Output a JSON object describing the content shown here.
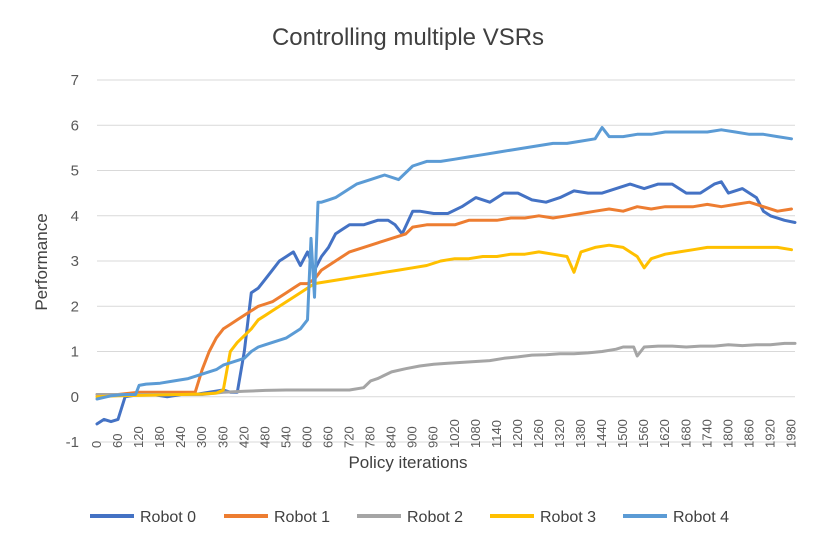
{
  "chart_data": {
    "type": "line",
    "title": "Controlling multiple VSRs",
    "xlabel": "Policy iterations",
    "ylabel": "Performance",
    "ylim": [
      -1,
      7
    ],
    "yticks": [
      "-1",
      "0",
      "1",
      "2",
      "3",
      "4",
      "5",
      "6",
      "7"
    ],
    "xlim": [
      0,
      1990
    ],
    "x_tick_labels": [
      "0",
      "60",
      "120",
      "180",
      "240",
      "300",
      "360",
      "420",
      "480",
      "540",
      "600",
      "660",
      "720",
      "780",
      "840",
      "900",
      "960",
      "1020",
      "1080",
      "1140",
      "1200",
      "1260",
      "1320",
      "1380",
      "1440",
      "1500",
      "1560",
      "1620",
      "1680",
      "1740",
      "1800",
      "1860",
      "1920",
      "1980"
    ],
    "grid": true,
    "legend_position": "bottom",
    "series": [
      {
        "name": "Robot 0",
        "color": "#4472c4",
        "x": [
          0,
          20,
          40,
          60,
          80,
          120,
          160,
          200,
          240,
          280,
          320,
          360,
          380,
          400,
          420,
          440,
          460,
          480,
          500,
          520,
          540,
          560,
          580,
          600,
          620,
          640,
          660,
          680,
          700,
          720,
          760,
          800,
          830,
          850,
          870,
          900,
          920,
          960,
          1000,
          1040,
          1080,
          1120,
          1160,
          1200,
          1240,
          1280,
          1320,
          1360,
          1400,
          1440,
          1480,
          1520,
          1560,
          1600,
          1640,
          1680,
          1720,
          1760,
          1780,
          1800,
          1840,
          1880,
          1900,
          1920,
          1960,
          1990
        ],
        "y": [
          -0.6,
          -0.5,
          -0.55,
          -0.5,
          0.0,
          0.05,
          0.05,
          0.0,
          0.05,
          0.05,
          0.1,
          0.15,
          0.1,
          0.1,
          1.0,
          2.3,
          2.4,
          2.6,
          2.8,
          3.0,
          3.1,
          3.2,
          2.9,
          3.2,
          2.8,
          3.1,
          3.3,
          3.6,
          3.7,
          3.8,
          3.8,
          3.9,
          3.9,
          3.8,
          3.6,
          4.1,
          4.1,
          4.05,
          4.05,
          4.2,
          4.4,
          4.3,
          4.5,
          4.5,
          4.35,
          4.3,
          4.4,
          4.55,
          4.5,
          4.5,
          4.6,
          4.7,
          4.6,
          4.7,
          4.7,
          4.5,
          4.5,
          4.7,
          4.75,
          4.5,
          4.6,
          4.4,
          4.1,
          4.0,
          3.9,
          3.85
        ]
      },
      {
        "name": "Robot 1",
        "color": "#ed7d31",
        "x": [
          0,
          60,
          120,
          180,
          240,
          280,
          300,
          320,
          340,
          360,
          380,
          400,
          420,
          440,
          460,
          480,
          500,
          520,
          540,
          560,
          580,
          600,
          620,
          640,
          680,
          720,
          760,
          800,
          840,
          880,
          900,
          940,
          980,
          1020,
          1060,
          1100,
          1140,
          1180,
          1220,
          1260,
          1300,
          1340,
          1380,
          1420,
          1460,
          1500,
          1540,
          1580,
          1620,
          1660,
          1700,
          1740,
          1780,
          1820,
          1860,
          1900,
          1940,
          1980
        ],
        "y": [
          0.05,
          0.05,
          0.1,
          0.1,
          0.1,
          0.1,
          0.6,
          1.0,
          1.3,
          1.5,
          1.6,
          1.7,
          1.8,
          1.9,
          2.0,
          2.05,
          2.1,
          2.2,
          2.3,
          2.4,
          2.5,
          2.5,
          2.6,
          2.8,
          3.0,
          3.2,
          3.3,
          3.4,
          3.5,
          3.6,
          3.75,
          3.8,
          3.8,
          3.8,
          3.9,
          3.9,
          3.9,
          3.95,
          3.95,
          4.0,
          3.95,
          4.0,
          4.05,
          4.1,
          4.15,
          4.1,
          4.2,
          4.15,
          4.2,
          4.2,
          4.2,
          4.25,
          4.2,
          4.25,
          4.3,
          4.2,
          4.1,
          4.15
        ]
      },
      {
        "name": "Robot 2",
        "color": "#a5a5a5",
        "x": [
          0,
          60,
          120,
          180,
          240,
          300,
          360,
          420,
          480,
          540,
          600,
          660,
          720,
          760,
          780,
          800,
          840,
          880,
          920,
          960,
          1000,
          1040,
          1080,
          1120,
          1160,
          1200,
          1240,
          1280,
          1320,
          1360,
          1400,
          1440,
          1480,
          1500,
          1530,
          1540,
          1560,
          1600,
          1640,
          1680,
          1720,
          1760,
          1800,
          1840,
          1880,
          1920,
          1960,
          1990
        ],
        "y": [
          0.05,
          0.05,
          0.05,
          0.05,
          0.05,
          0.05,
          0.1,
          0.12,
          0.14,
          0.15,
          0.15,
          0.15,
          0.15,
          0.2,
          0.35,
          0.4,
          0.55,
          0.62,
          0.68,
          0.72,
          0.74,
          0.76,
          0.78,
          0.8,
          0.85,
          0.88,
          0.92,
          0.93,
          0.95,
          0.95,
          0.97,
          1.0,
          1.05,
          1.1,
          1.1,
          0.9,
          1.1,
          1.12,
          1.12,
          1.1,
          1.12,
          1.12,
          1.15,
          1.13,
          1.15,
          1.15,
          1.18,
          1.18
        ]
      },
      {
        "name": "Robot 3",
        "color": "#ffc000",
        "x": [
          0,
          60,
          120,
          180,
          240,
          300,
          340,
          360,
          380,
          400,
          420,
          440,
          460,
          480,
          500,
          520,
          540,
          560,
          580,
          600,
          620,
          660,
          700,
          740,
          780,
          820,
          860,
          900,
          940,
          980,
          1020,
          1060,
          1100,
          1140,
          1180,
          1220,
          1260,
          1300,
          1340,
          1360,
          1380,
          1420,
          1460,
          1500,
          1540,
          1560,
          1580,
          1620,
          1660,
          1700,
          1740,
          1780,
          1820,
          1860,
          1900,
          1940,
          1980
        ],
        "y": [
          0.0,
          0.02,
          0.03,
          0.04,
          0.05,
          0.06,
          0.08,
          0.15,
          1.0,
          1.2,
          1.35,
          1.5,
          1.7,
          1.8,
          1.9,
          2.0,
          2.1,
          2.2,
          2.3,
          2.4,
          2.5,
          2.55,
          2.6,
          2.65,
          2.7,
          2.75,
          2.8,
          2.85,
          2.9,
          3.0,
          3.05,
          3.05,
          3.1,
          3.1,
          3.15,
          3.15,
          3.2,
          3.15,
          3.1,
          2.75,
          3.2,
          3.3,
          3.35,
          3.3,
          3.1,
          2.85,
          3.05,
          3.15,
          3.2,
          3.25,
          3.3,
          3.3,
          3.3,
          3.3,
          3.3,
          3.3,
          3.25
        ]
      },
      {
        "name": "Robot 4",
        "color": "#5b9bd5",
        "x": [
          0,
          40,
          80,
          110,
          120,
          140,
          180,
          220,
          260,
          300,
          340,
          360,
          380,
          400,
          420,
          440,
          460,
          480,
          500,
          520,
          540,
          560,
          580,
          600,
          610,
          620,
          630,
          640,
          660,
          680,
          700,
          720,
          740,
          780,
          820,
          860,
          900,
          940,
          980,
          1020,
          1060,
          1100,
          1140,
          1180,
          1220,
          1260,
          1300,
          1340,
          1380,
          1420,
          1440,
          1460,
          1500,
          1540,
          1580,
          1620,
          1660,
          1700,
          1740,
          1780,
          1820,
          1860,
          1900,
          1940,
          1980
        ],
        "y": [
          -0.05,
          0.02,
          0.05,
          0.05,
          0.25,
          0.28,
          0.3,
          0.35,
          0.4,
          0.5,
          0.6,
          0.7,
          0.75,
          0.8,
          0.85,
          1.0,
          1.1,
          1.15,
          1.2,
          1.25,
          1.3,
          1.4,
          1.5,
          1.7,
          3.5,
          2.2,
          4.3,
          4.3,
          4.35,
          4.4,
          4.5,
          4.6,
          4.7,
          4.8,
          4.9,
          4.8,
          5.1,
          5.2,
          5.2,
          5.25,
          5.3,
          5.35,
          5.4,
          5.45,
          5.5,
          5.55,
          5.6,
          5.6,
          5.65,
          5.7,
          5.95,
          5.75,
          5.75,
          5.8,
          5.8,
          5.85,
          5.85,
          5.85,
          5.85,
          5.9,
          5.85,
          5.8,
          5.8,
          5.75,
          5.7
        ]
      }
    ]
  }
}
